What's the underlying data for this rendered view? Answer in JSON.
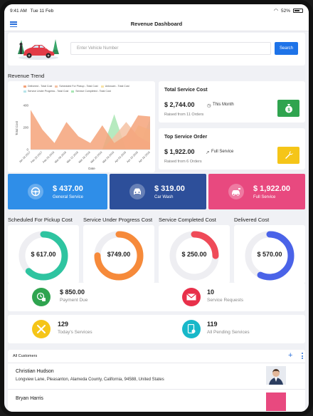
{
  "status": {
    "time": "9:41 AM",
    "date": "Tue 11 Feb",
    "battery": "52%"
  },
  "appbar": {
    "title": "Revenue Dashboard"
  },
  "search": {
    "placeholder": "Enter Vehicle Number",
    "button": "Search"
  },
  "revenue_trend": {
    "label": "Revenue Trend"
  },
  "chart_data": {
    "type": "area",
    "title": "",
    "xlabel": "Date",
    "ylabel": "Total Cost",
    "ylim": [
      0,
      400
    ],
    "yticks": [
      0,
      200,
      400
    ],
    "x": [
      "Jan 18 2017",
      "Feb 20 2017",
      "Feb 25 2018",
      "Mar 08 2018",
      "Mar 12 2018",
      "Mar 16 2018",
      "Mar 20 2018",
      "Mar 28 2018",
      "Apr 03 2018",
      "Apr 10 2018",
      "Apr 16 2018"
    ],
    "series": [
      {
        "name": "Delivered - Total Cost",
        "color": "#f4a37a",
        "values": [
          360,
          180,
          60,
          250,
          120,
          60,
          220,
          60,
          130,
          310,
          300
        ]
      },
      {
        "name": "Scheduled For Pickup - Total Cost",
        "color": "#f5c2a3",
        "values": [
          0,
          0,
          0,
          0,
          0,
          0,
          0,
          120,
          250,
          120,
          60
        ]
      },
      {
        "name": "Unknown - Total Cost",
        "color": "#f8e3a6",
        "values": [
          0,
          0,
          0,
          0,
          0,
          0,
          0,
          0,
          0,
          220,
          180
        ]
      },
      {
        "name": "Service Under Progress - Total Cost",
        "color": "#b7e4ea",
        "values": [
          0,
          0,
          0,
          0,
          0,
          0,
          0,
          0,
          0,
          0,
          280
        ]
      },
      {
        "name": "Service Completed - Total Cost",
        "color": "#a9e6b4",
        "values": [
          0,
          0,
          0,
          0,
          0,
          0,
          0,
          320,
          0,
          0,
          160
        ]
      }
    ],
    "legend": "top",
    "grid": false
  },
  "total_service_cost": {
    "title": "Total Service Cost",
    "value": "$ 2,744.00",
    "period": "This Month",
    "sub": "Raised from 11 Orders",
    "color": "#2fa44f"
  },
  "top_service_order": {
    "title": "Top Service Order",
    "value": "$ 1,922.00",
    "period": "Full Service",
    "sub": "Raised from 6 Orders",
    "color": "#f5c518"
  },
  "tiles": [
    {
      "amount": "$ 437.00",
      "label": "General Service",
      "color": "#2f8ee8",
      "icon": "steering-wheel-icon"
    },
    {
      "amount": "$ 319.00",
      "label": "Car Wash",
      "color": "#2d4f9a",
      "icon": "car-icon"
    },
    {
      "amount": "$ 1,922.00",
      "label": "Full Service",
      "color": "#e8497f",
      "icon": "car-service-icon"
    }
  ],
  "rings": [
    {
      "title": "Scheduled For Pickup Cost",
      "value": "$ 617.00",
      "color": "#2ec4a0",
      "fraction": 0.62
    },
    {
      "title": "Service Under Progress Cost",
      "value": "$749.00",
      "color": "#f68a3a",
      "fraction": 0.75
    },
    {
      "title": "Service Completed Cost",
      "value": "$ 250.00",
      "color": "#ef4a58",
      "fraction": 0.25
    },
    {
      "title": "Delivered Cost",
      "value": "$ 570.00",
      "color": "#4a63e8",
      "fraction": 0.57
    }
  ],
  "payment_due": {
    "value": "$ 850.00",
    "label": "Payment Due"
  },
  "service_requests": {
    "value": "10",
    "label": "Service Requests"
  },
  "todays_services": {
    "value": "129",
    "label": "Today's Services"
  },
  "pending_services": {
    "value": "119",
    "label": "All Pending Services"
  },
  "customers": {
    "header": "All Customers",
    "list": [
      {
        "name": "Christian Hudson",
        "address": "Longview Lane, Pleasanton, Alameda County, California, 94588, United States"
      },
      {
        "name": "Bryan Harris",
        "address": ""
      }
    ]
  }
}
